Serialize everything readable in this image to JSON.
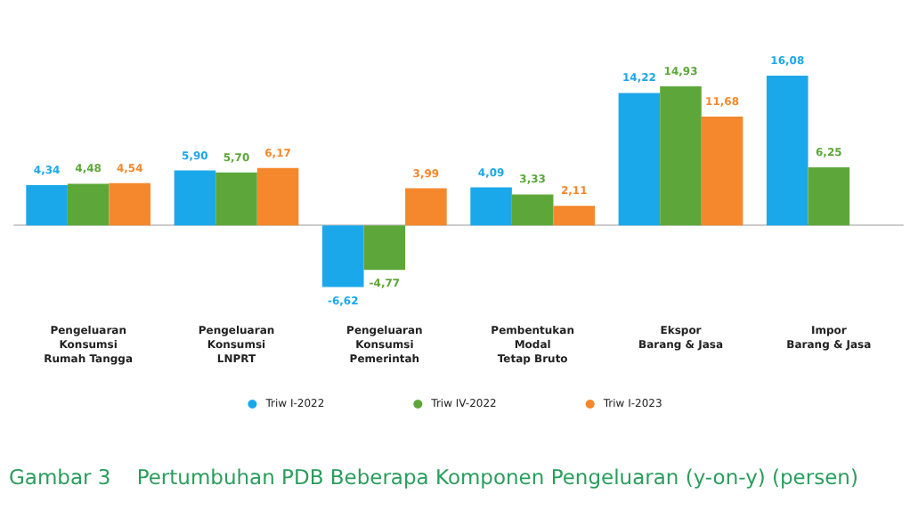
{
  "chart_data": {
    "type": "bar",
    "title": "Gambar 3    Pertumbuhan PDB Beberapa Komponen Pengeluaran (y-on-y) (persen)",
    "categories": [
      "Pengeluaran\nKonsumsi\nRumah Tangga",
      "Pengeluaran\nKonsumsi\nLNPRT",
      "Pengeluaran\nKonsumsi\nPemerintah",
      "Pembentukan\nModal\nTetap Bruto",
      "Ekspor\nBarang & Jasa",
      "Impor\nBarang & Jasa"
    ],
    "series": [
      {
        "name": "Triw I-2022",
        "color": "#1ba8eb",
        "values": [
          4.34,
          5.9,
          -6.62,
          4.09,
          14.22,
          16.08
        ],
        "value_labels": [
          "4,34",
          "5,90",
          "-6,62",
          "4,09",
          "14,22",
          "16,08"
        ]
      },
      {
        "name": "Triw IV-2022",
        "color": "#5da73a",
        "values": [
          4.48,
          5.7,
          -4.77,
          3.33,
          14.93,
          6.25
        ],
        "value_labels": [
          "4,48",
          "5,70",
          "-4,77",
          "3,33",
          "14,93",
          "6,25"
        ]
      },
      {
        "name": "Triw I-2023",
        "color": "#f5882c",
        "values": [
          4.54,
          6.17,
          3.99,
          2.11,
          11.68,
          null
        ],
        "value_labels": [
          "4,54",
          "6,17",
          "3,99",
          "2,11",
          "11,68",
          null
        ]
      }
    ],
    "legend": "bottom"
  }
}
